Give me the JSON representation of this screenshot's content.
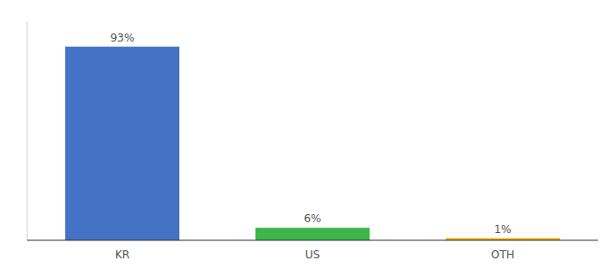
{
  "chart_data": {
    "type": "bar",
    "categories": [
      "KR",
      "US",
      "OTH"
    ],
    "values": [
      93,
      6,
      1
    ],
    "value_labels": [
      "93%",
      "6%",
      "1%"
    ],
    "colors": [
      "#4472c4",
      "#3cb54a",
      "#f0a500"
    ],
    "ylim": [
      0,
      105
    ],
    "data_labels": true,
    "tick_labels": "x"
  }
}
